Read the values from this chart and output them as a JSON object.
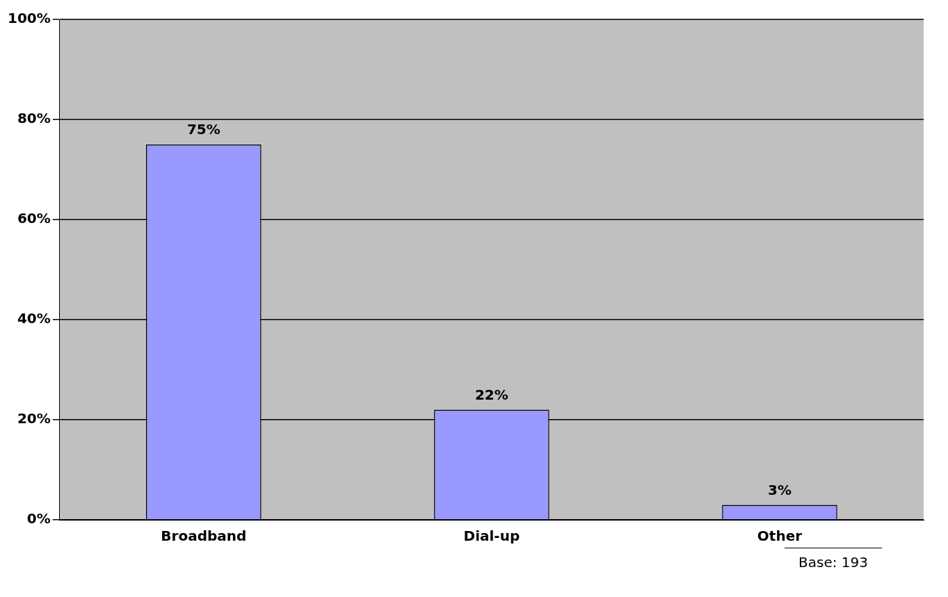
{
  "chart_data": {
    "type": "bar",
    "categories": [
      "Broadband",
      "Dial-up",
      "Other"
    ],
    "values": [
      75,
      22,
      3
    ],
    "color": "#9999ff",
    "value_labels": [
      "75%",
      "22%",
      "3%"
    ],
    "ylim": [
      0,
      100
    ],
    "yticks": [
      {
        "value": 0,
        "label": "0%"
      },
      {
        "value": 20,
        "label": "20%"
      },
      {
        "value": 40,
        "label": "40%"
      },
      {
        "value": 60,
        "label": "60%"
      },
      {
        "value": 80,
        "label": "80%"
      },
      {
        "value": 100,
        "label": "100%"
      }
    ],
    "grid": "y",
    "legend": false,
    "annotations": [
      "Base: 193"
    ]
  }
}
